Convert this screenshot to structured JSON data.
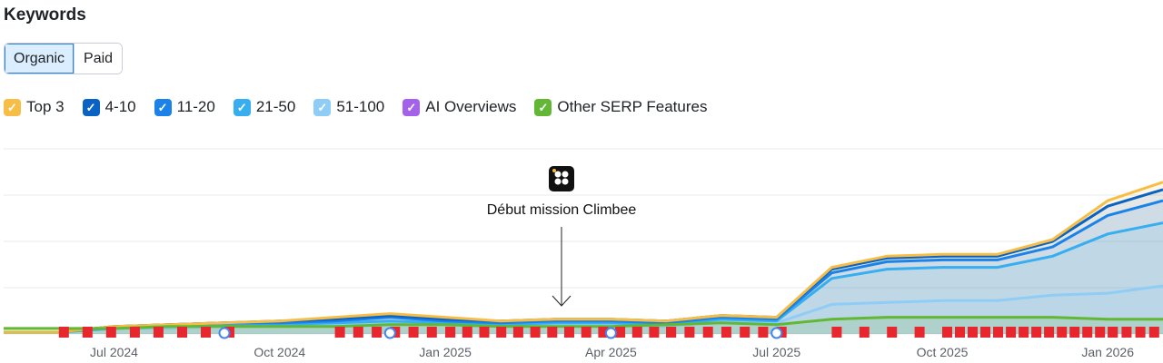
{
  "header": {
    "title": "Keywords"
  },
  "tabs": [
    {
      "label": "Organic",
      "active": true
    },
    {
      "label": "Paid",
      "active": false
    }
  ],
  "legend": [
    {
      "label": "Top 3",
      "color": "#f6be46",
      "checked": true
    },
    {
      "label": "4-10",
      "color": "#0a63c4",
      "checked": true
    },
    {
      "label": "11-20",
      "color": "#1a82e8",
      "checked": true
    },
    {
      "label": "21-50",
      "color": "#36aef0",
      "checked": true
    },
    {
      "label": "51-100",
      "color": "#8fcdf7",
      "checked": true
    },
    {
      "label": "AI Overviews",
      "color": "#a462ea",
      "checked": true
    },
    {
      "label": "Other SERP Features",
      "color": "#62b835",
      "checked": true
    }
  ],
  "chart_data": {
    "type": "area",
    "stacked": true,
    "x_ticks": [
      "Jul 2024",
      "Oct 2024",
      "Jan 2025",
      "Apr 2025",
      "Jul 2025",
      "Oct 2025",
      "Jan 2026"
    ],
    "x": [
      "2024-05",
      "2024-06",
      "2024-07",
      "2024-08",
      "2024-09",
      "2024-10",
      "2024-11",
      "2024-12",
      "2025-01",
      "2025-02",
      "2025-03",
      "2025-04",
      "2025-05",
      "2025-06",
      "2025-07",
      "2025-08",
      "2025-09",
      "2025-10",
      "2025-11",
      "2025-12",
      "2026-01",
      "2026-02"
    ],
    "ylim": [
      0,
      100
    ],
    "grid": true,
    "series": [
      {
        "name": "51-100",
        "color": "#8fcdf7",
        "values": [
          1,
          1,
          3,
          3,
          4,
          4,
          5,
          6,
          5,
          4,
          5,
          5,
          4,
          7,
          6,
          16,
          17,
          18,
          18,
          21,
          22,
          26
        ]
      },
      {
        "name": "21-50",
        "color": "#36aef0",
        "values": [
          0,
          0,
          0,
          1,
          1,
          1,
          1,
          1,
          1,
          1,
          1,
          1,
          1,
          1,
          1,
          14,
          18,
          18,
          18,
          21,
          32,
          34
        ]
      },
      {
        "name": "11-20",
        "color": "#1a82e8",
        "values": [
          0,
          0,
          1,
          1,
          1,
          1,
          1,
          2,
          1,
          1,
          1,
          1,
          1,
          1,
          1,
          3,
          4,
          4,
          4,
          5,
          10,
          12
        ]
      },
      {
        "name": "4-10",
        "color": "#0a63c4",
        "values": [
          0,
          0,
          0,
          0,
          0,
          1,
          1,
          1,
          1,
          1,
          1,
          1,
          1,
          1,
          1,
          2,
          2,
          2,
          2,
          3,
          5,
          6
        ]
      },
      {
        "name": "Top 3",
        "color": "#f6be46",
        "values": [
          0,
          0,
          0,
          0,
          0,
          0,
          1,
          1,
          1,
          0,
          0,
          0,
          0,
          0,
          0,
          1,
          1,
          1,
          1,
          1,
          3,
          4
        ]
      }
    ],
    "overlay_series": [
      {
        "name": "Other SERP Features",
        "color": "#62b835",
        "values": [
          3,
          3,
          3,
          4,
          4,
          4,
          4,
          5,
          5,
          4,
          4,
          4,
          5,
          6,
          5,
          8,
          9,
          9,
          9,
          9,
          8,
          8
        ]
      }
    ],
    "annotation": {
      "label": "Début mission Climbee",
      "x": "2025-04"
    },
    "flag_groups": [
      {
        "start": "2024-06",
        "end": "2024-09",
        "count": 8
      },
      {
        "start": "2024-11",
        "end": "2025-01",
        "count": 7
      },
      {
        "start": "2025-01",
        "end": "2025-05",
        "count": 14
      },
      {
        "start": "2025-05",
        "end": "2025-07",
        "count": 7
      },
      {
        "start": "2025-08",
        "end": "2025-10",
        "count": 5
      },
      {
        "start": "2025-10",
        "end": "2026-01",
        "count": 14
      },
      {
        "start": "2026-01",
        "end": "2026-02",
        "count": 5
      }
    ],
    "google_updates": [
      "2024-09",
      "2024-12",
      "2025-04",
      "2025-07"
    ]
  }
}
